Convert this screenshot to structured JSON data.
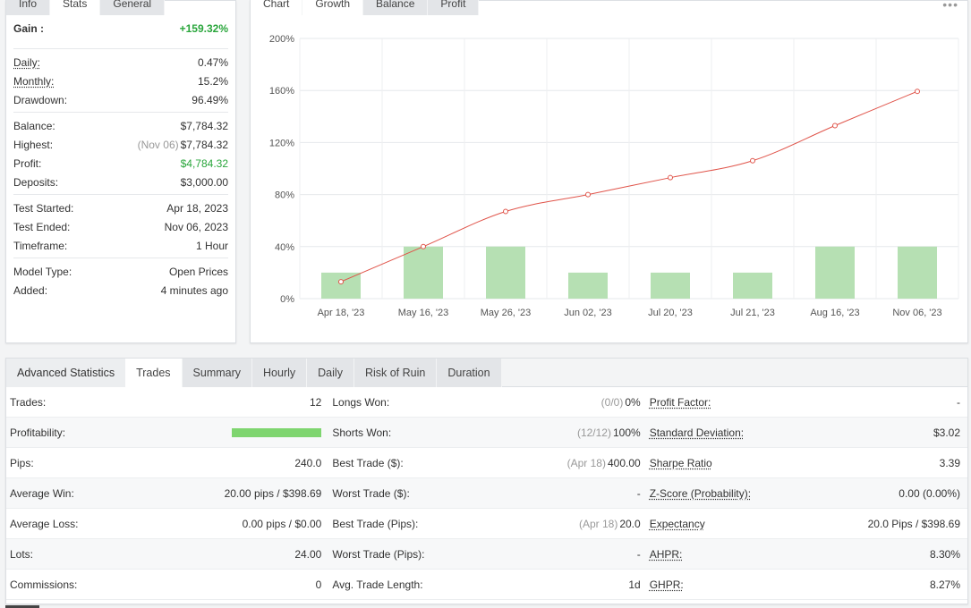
{
  "left_tabs": [
    "Info",
    "Stats",
    "General"
  ],
  "stats": {
    "gain": {
      "label": "Gain :",
      "value": "+159.32%"
    },
    "group1": [
      {
        "label": "Daily:",
        "value": "0.47%",
        "underline": true
      },
      {
        "label": "Monthly:",
        "value": "15.2%",
        "underline": true
      },
      {
        "label": "Drawdown:",
        "value": "96.49%",
        "underline": false
      }
    ],
    "group2": [
      {
        "label": "Balance:",
        "note": "",
        "value": "$7,784.32"
      },
      {
        "label": "Highest:",
        "note": "(Nov 06)",
        "value": "$7,784.32"
      },
      {
        "label": "Profit:",
        "note": "",
        "value": "$4,784.32",
        "green": true
      },
      {
        "label": "Deposits:",
        "note": "",
        "value": "$3,000.00"
      }
    ],
    "group3": [
      {
        "label": "Test Started:",
        "value": "Apr 18, 2023"
      },
      {
        "label": "Test Ended:",
        "value": "Nov 06, 2023"
      },
      {
        "label": "Timeframe:",
        "value": "1 Hour"
      }
    ],
    "group4": [
      {
        "label": "Model Type:",
        "value": "Open Prices"
      },
      {
        "label": "Added:",
        "value": "4 minutes ago"
      }
    ]
  },
  "chart_tabs": [
    "Chart",
    "Growth",
    "Balance",
    "Profit"
  ],
  "more_icon": "more-dots-icon",
  "chart_data": {
    "type": "line",
    "categories": [
      "Apr 18, '23",
      "May 16, '23",
      "May 26, '23",
      "Jun 02, '23",
      "Jul 20, '23",
      "Jul 21, '23",
      "Aug 16, '23",
      "Nov 06, '23"
    ],
    "y_ticks": [
      "0%",
      "40%",
      "80%",
      "120%",
      "160%",
      "200%"
    ],
    "ylim": [
      0,
      200
    ],
    "series": [
      {
        "kind": "line",
        "color": "#e0544a",
        "values": [
          13,
          40,
          67,
          80,
          93,
          106,
          133,
          159.32
        ]
      },
      {
        "kind": "bar",
        "color": "#b6e0b3",
        "values": [
          20,
          40,
          40,
          20,
          20,
          20,
          40,
          40
        ]
      }
    ],
    "grid": true
  },
  "advanced": {
    "title": "Advanced Statistics",
    "tabs": [
      "Trades",
      "Summary",
      "Hourly",
      "Daily",
      "Risk of Ruin",
      "Duration"
    ],
    "col1": [
      {
        "label": "Trades:",
        "value": "12"
      },
      {
        "label": "Profitability:",
        "value": "",
        "bar": 1.0
      },
      {
        "label": "Pips:",
        "value": "240.0"
      },
      {
        "label": "Average Win:",
        "value": "20.00 pips / $398.69"
      },
      {
        "label": "Average Loss:",
        "value": "0.00 pips / $0.00"
      },
      {
        "label": "Lots:",
        "value": "24.00"
      },
      {
        "label": "Commissions:",
        "value": "0"
      }
    ],
    "col2": [
      {
        "label": "Longs Won:",
        "note": "(0/0)",
        "value": "0%"
      },
      {
        "label": "Shorts Won:",
        "note": "(12/12)",
        "value": "100%"
      },
      {
        "label": "Best Trade ($):",
        "note": "(Apr 18)",
        "value": "400.00"
      },
      {
        "label": "Worst Trade ($):",
        "note": "",
        "value": "-"
      },
      {
        "label": "Best Trade (Pips):",
        "note": "(Apr 18)",
        "value": "20.0"
      },
      {
        "label": "Worst Trade (Pips):",
        "note": "",
        "value": "-"
      },
      {
        "label": "Avg. Trade Length:",
        "note": "",
        "value": "1d"
      }
    ],
    "col3": [
      {
        "label": "Profit Factor:",
        "value": "-"
      },
      {
        "label": "Standard Deviation:",
        "value": "$3.02"
      },
      {
        "label": "Sharpe Ratio",
        "value": "3.39"
      },
      {
        "label": "Z-Score (Probability):",
        "value": "0.00 (0.00%)"
      },
      {
        "label": "Expectancy",
        "value": "20.0 Pips / $398.69"
      },
      {
        "label": "AHPR:",
        "value": "8.30%"
      },
      {
        "label": "GHPR:",
        "value": "8.27%"
      }
    ]
  }
}
